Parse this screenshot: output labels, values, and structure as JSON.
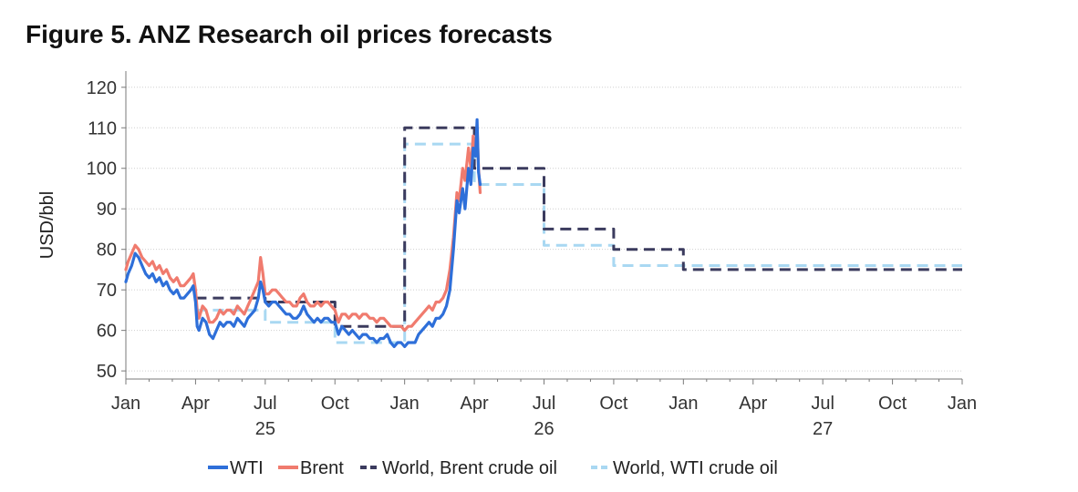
{
  "figure_title": "Figure 5.  ANZ Research oil prices forecasts",
  "chart_data": {
    "type": "line",
    "title": "Figure 5.  ANZ Research oil prices forecasts",
    "xlabel": "",
    "ylabel": "USD/bbl",
    "ylim": [
      48,
      124
    ],
    "x_start": "2025-01",
    "x_end": "2028-01",
    "y_ticks": [
      50,
      60,
      70,
      80,
      90,
      100,
      110,
      120
    ],
    "x_tick_labels": [
      {
        "m": 0,
        "label": "Jan"
      },
      {
        "m": 3,
        "label": "Apr"
      },
      {
        "m": 6,
        "label": "Jul"
      },
      {
        "m": 9,
        "label": "Oct"
      },
      {
        "m": 12,
        "label": "Jan"
      },
      {
        "m": 15,
        "label": "Apr"
      },
      {
        "m": 18,
        "label": "Jul"
      },
      {
        "m": 21,
        "label": "Oct"
      },
      {
        "m": 24,
        "label": "Jan"
      },
      {
        "m": 27,
        "label": "Apr"
      },
      {
        "m": 30,
        "label": "Jul"
      },
      {
        "m": 33,
        "label": "Oct"
      },
      {
        "m": 36,
        "label": "Jan"
      }
    ],
    "year_labels": [
      {
        "m": 6,
        "label": "25"
      },
      {
        "m": 18,
        "label": "26"
      },
      {
        "m": 30,
        "label": "27"
      }
    ],
    "colors": {
      "wti": "#2e6fd9",
      "brent": "#f07b6e",
      "world_brent": "#3b3b5e",
      "world_wti": "#a9d8f2",
      "grid": "#cfcfcf",
      "axis": "#7a7a7a"
    },
    "series": [
      {
        "name": "WTI",
        "key": "wti",
        "style": "solid",
        "points": [
          [
            0.0,
            72
          ],
          [
            0.1,
            74
          ],
          [
            0.25,
            76
          ],
          [
            0.4,
            79
          ],
          [
            0.55,
            78
          ],
          [
            0.7,
            76
          ],
          [
            0.85,
            74
          ],
          [
            1.0,
            73
          ],
          [
            1.15,
            74
          ],
          [
            1.3,
            72
          ],
          [
            1.45,
            73
          ],
          [
            1.6,
            71
          ],
          [
            1.75,
            72
          ],
          [
            1.9,
            70
          ],
          [
            2.05,
            69
          ],
          [
            2.2,
            70
          ],
          [
            2.35,
            68
          ],
          [
            2.5,
            68
          ],
          [
            2.65,
            69
          ],
          [
            2.8,
            70
          ],
          [
            2.9,
            71
          ],
          [
            3.0,
            67
          ],
          [
            3.07,
            61
          ],
          [
            3.15,
            60
          ],
          [
            3.3,
            63
          ],
          [
            3.45,
            62
          ],
          [
            3.6,
            59
          ],
          [
            3.75,
            58
          ],
          [
            3.9,
            60
          ],
          [
            4.05,
            62
          ],
          [
            4.2,
            61
          ],
          [
            4.35,
            62
          ],
          [
            4.5,
            62
          ],
          [
            4.65,
            61
          ],
          [
            4.8,
            63
          ],
          [
            4.95,
            62
          ],
          [
            5.1,
            61
          ],
          [
            5.25,
            63
          ],
          [
            5.4,
            64
          ],
          [
            5.55,
            65
          ],
          [
            5.7,
            68
          ],
          [
            5.8,
            72
          ],
          [
            5.9,
            70
          ],
          [
            6.0,
            67
          ],
          [
            6.15,
            66
          ],
          [
            6.3,
            67
          ],
          [
            6.45,
            67
          ],
          [
            6.6,
            66
          ],
          [
            6.75,
            65
          ],
          [
            6.9,
            64
          ],
          [
            7.05,
            64
          ],
          [
            7.2,
            63
          ],
          [
            7.35,
            63
          ],
          [
            7.5,
            64
          ],
          [
            7.65,
            66
          ],
          [
            7.8,
            64
          ],
          [
            7.95,
            63
          ],
          [
            8.1,
            62
          ],
          [
            8.25,
            63
          ],
          [
            8.4,
            62
          ],
          [
            8.55,
            63
          ],
          [
            8.7,
            63
          ],
          [
            8.85,
            62
          ],
          [
            9.0,
            62
          ],
          [
            9.15,
            59
          ],
          [
            9.3,
            61
          ],
          [
            9.45,
            60
          ],
          [
            9.6,
            59
          ],
          [
            9.75,
            60
          ],
          [
            9.9,
            59
          ],
          [
            10.05,
            58
          ],
          [
            10.2,
            59
          ],
          [
            10.35,
            59
          ],
          [
            10.5,
            58
          ],
          [
            10.65,
            58
          ],
          [
            10.8,
            57
          ],
          [
            10.95,
            58
          ],
          [
            11.1,
            58
          ],
          [
            11.25,
            59
          ],
          [
            11.4,
            57
          ],
          [
            11.55,
            56
          ],
          [
            11.7,
            57
          ],
          [
            11.85,
            57
          ],
          [
            12.0,
            56
          ],
          [
            12.15,
            57
          ],
          [
            12.3,
            57
          ],
          [
            12.45,
            57
          ],
          [
            12.6,
            59
          ],
          [
            12.75,
            60
          ],
          [
            12.9,
            61
          ],
          [
            13.05,
            62
          ],
          [
            13.2,
            61
          ],
          [
            13.35,
            63
          ],
          [
            13.5,
            63
          ],
          [
            13.65,
            64
          ],
          [
            13.8,
            66
          ],
          [
            13.95,
            70
          ],
          [
            14.1,
            80
          ],
          [
            14.25,
            92
          ],
          [
            14.35,
            89
          ],
          [
            14.5,
            95
          ],
          [
            14.6,
            90
          ],
          [
            14.75,
            100
          ],
          [
            14.85,
            96
          ],
          [
            14.95,
            105
          ],
          [
            15.05,
            103
          ],
          [
            15.12,
            112
          ],
          [
            15.18,
            99
          ],
          [
            15.25,
            96
          ]
        ]
      },
      {
        "name": "Brent",
        "key": "brent",
        "style": "solid",
        "points": [
          [
            0.0,
            75
          ],
          [
            0.1,
            77
          ],
          [
            0.25,
            79
          ],
          [
            0.4,
            81
          ],
          [
            0.55,
            80
          ],
          [
            0.7,
            78
          ],
          [
            0.85,
            77
          ],
          [
            1.0,
            76
          ],
          [
            1.15,
            77
          ],
          [
            1.3,
            75
          ],
          [
            1.45,
            76
          ],
          [
            1.6,
            74
          ],
          [
            1.75,
            75
          ],
          [
            1.9,
            73
          ],
          [
            2.05,
            72
          ],
          [
            2.2,
            73
          ],
          [
            2.35,
            71
          ],
          [
            2.5,
            71
          ],
          [
            2.65,
            72
          ],
          [
            2.8,
            73
          ],
          [
            2.9,
            74
          ],
          [
            3.0,
            70
          ],
          [
            3.07,
            65
          ],
          [
            3.15,
            63
          ],
          [
            3.3,
            66
          ],
          [
            3.45,
            65
          ],
          [
            3.6,
            62
          ],
          [
            3.75,
            62
          ],
          [
            3.9,
            63
          ],
          [
            4.05,
            65
          ],
          [
            4.2,
            64
          ],
          [
            4.35,
            65
          ],
          [
            4.5,
            65
          ],
          [
            4.65,
            64
          ],
          [
            4.8,
            66
          ],
          [
            4.95,
            65
          ],
          [
            5.1,
            64
          ],
          [
            5.25,
            66
          ],
          [
            5.4,
            68
          ],
          [
            5.55,
            70
          ],
          [
            5.7,
            72
          ],
          [
            5.8,
            78
          ],
          [
            5.9,
            74
          ],
          [
            6.0,
            69
          ],
          [
            6.15,
            69
          ],
          [
            6.3,
            70
          ],
          [
            6.45,
            70
          ],
          [
            6.6,
            69
          ],
          [
            6.75,
            68
          ],
          [
            6.9,
            67
          ],
          [
            7.05,
            67
          ],
          [
            7.2,
            66
          ],
          [
            7.35,
            66
          ],
          [
            7.5,
            68
          ],
          [
            7.65,
            69
          ],
          [
            7.8,
            67
          ],
          [
            7.95,
            66
          ],
          [
            8.1,
            66
          ],
          [
            8.25,
            67
          ],
          [
            8.4,
            66
          ],
          [
            8.55,
            67
          ],
          [
            8.7,
            67
          ],
          [
            8.85,
            66
          ],
          [
            9.0,
            65
          ],
          [
            9.15,
            62
          ],
          [
            9.3,
            64
          ],
          [
            9.45,
            64
          ],
          [
            9.6,
            63
          ],
          [
            9.75,
            64
          ],
          [
            9.9,
            64
          ],
          [
            10.05,
            63
          ],
          [
            10.2,
            64
          ],
          [
            10.35,
            64
          ],
          [
            10.5,
            63
          ],
          [
            10.65,
            63
          ],
          [
            10.8,
            62
          ],
          [
            10.95,
            63
          ],
          [
            11.1,
            63
          ],
          [
            11.25,
            62
          ],
          [
            11.4,
            61
          ],
          [
            11.55,
            61
          ],
          [
            11.7,
            61
          ],
          [
            11.85,
            61
          ],
          [
            12.0,
            60
          ],
          [
            12.15,
            61
          ],
          [
            12.3,
            61
          ],
          [
            12.45,
            62
          ],
          [
            12.6,
            63
          ],
          [
            12.75,
            64
          ],
          [
            12.9,
            65
          ],
          [
            13.05,
            66
          ],
          [
            13.2,
            65
          ],
          [
            13.35,
            67
          ],
          [
            13.5,
            67
          ],
          [
            13.65,
            68
          ],
          [
            13.8,
            70
          ],
          [
            13.95,
            75
          ],
          [
            14.1,
            83
          ],
          [
            14.25,
            94
          ],
          [
            14.35,
            92
          ],
          [
            14.5,
            100
          ],
          [
            14.6,
            97
          ],
          [
            14.75,
            105
          ],
          [
            14.85,
            100
          ],
          [
            14.95,
            108
          ],
          [
            15.05,
            104
          ],
          [
            15.12,
            110
          ],
          [
            15.18,
            100
          ],
          [
            15.25,
            94
          ]
        ]
      },
      {
        "name": "World, Brent crude oil",
        "key": "world_brent",
        "style": "dashed",
        "points": [
          [
            3.0,
            68
          ],
          [
            6.0,
            68
          ],
          [
            6.0,
            67
          ],
          [
            9.0,
            67
          ],
          [
            9.0,
            61
          ],
          [
            12.0,
            61
          ],
          [
            12.0,
            110
          ],
          [
            15.0,
            110
          ],
          [
            15.0,
            100
          ],
          [
            18.0,
            100
          ],
          [
            18.0,
            85
          ],
          [
            21.0,
            85
          ],
          [
            21.0,
            80
          ],
          [
            24.0,
            80
          ],
          [
            24.0,
            75
          ],
          [
            36.0,
            75
          ]
        ]
      },
      {
        "name": "World, WTI crude oil",
        "key": "world_wti",
        "style": "dashed",
        "points": [
          [
            3.0,
            65
          ],
          [
            6.0,
            65
          ],
          [
            6.0,
            62
          ],
          [
            9.0,
            62
          ],
          [
            9.0,
            57
          ],
          [
            12.0,
            57
          ],
          [
            12.0,
            106
          ],
          [
            15.0,
            106
          ],
          [
            15.0,
            96
          ],
          [
            18.0,
            96
          ],
          [
            18.0,
            81
          ],
          [
            21.0,
            81
          ],
          [
            21.0,
            76
          ],
          [
            24.0,
            76
          ],
          [
            24.0,
            76
          ],
          [
            36.0,
            76
          ]
        ]
      }
    ]
  }
}
